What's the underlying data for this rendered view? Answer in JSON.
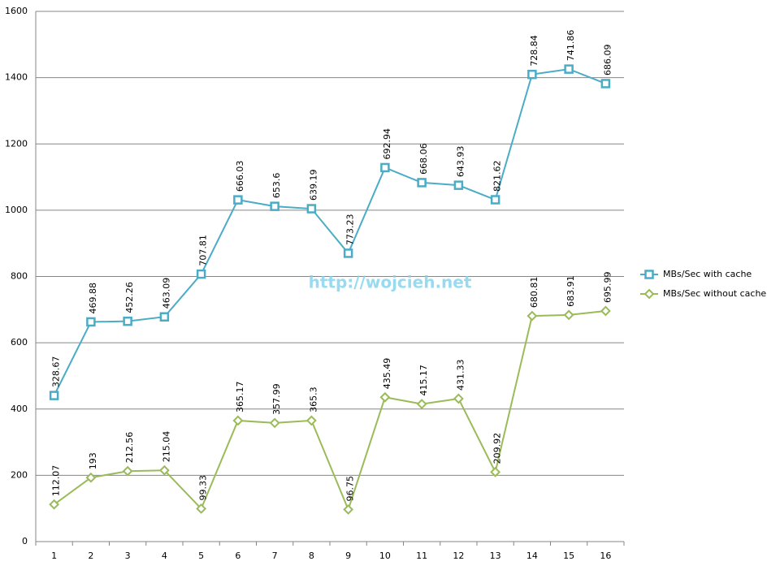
{
  "chart_data": {
    "type": "line",
    "stacked": true,
    "annotation": "http://wojcieh.net",
    "categories": [
      "1",
      "2",
      "3",
      "4",
      "5",
      "6",
      "7",
      "8",
      "9",
      "10",
      "11",
      "12",
      "13",
      "14",
      "15",
      "16"
    ],
    "series": [
      {
        "name": "MBs/Sec without cache",
        "color": "#9bbb59",
        "marker": "diamond",
        "values": [
          112.07,
          193,
          212.56,
          215.04,
          99.33,
          365.17,
          357.99,
          365.3,
          96.75,
          435.49,
          415.17,
          431.33,
          209.92,
          680.81,
          683.91,
          695.99
        ]
      },
      {
        "name": "MBs/Sec with cache",
        "color": "#4bacc6",
        "marker": "square",
        "values": [
          328.67,
          469.88,
          452.26,
          463.09,
          707.81,
          666.03,
          653.6,
          639.19,
          773.23,
          692.94,
          668.06,
          643.93,
          821.62,
          728.84,
          741.86,
          686.09
        ]
      }
    ],
    "ylim": [
      0,
      1600
    ],
    "yticks": [
      0,
      200,
      400,
      600,
      800,
      1000,
      1200,
      1400,
      1600
    ],
    "grid": true
  }
}
